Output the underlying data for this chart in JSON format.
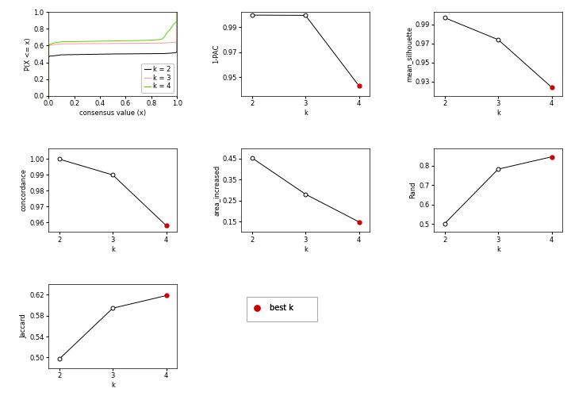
{
  "ecdf": {
    "k2": {
      "x": [
        0.0,
        0.001,
        0.005,
        0.01,
        0.05,
        0.1,
        0.5,
        0.9,
        0.95,
        0.99,
        0.995,
        0.999,
        1.0
      ],
      "y": [
        0.0,
        0.46,
        0.47,
        0.475,
        0.48,
        0.49,
        0.5,
        0.505,
        0.51,
        0.515,
        0.52,
        0.53,
        1.0
      ]
    },
    "k3": {
      "x": [
        0.0,
        0.001,
        0.005,
        0.01,
        0.05,
        0.1,
        0.5,
        0.9,
        0.95,
        0.99,
        0.995,
        0.999,
        1.0
      ],
      "y": [
        0.0,
        0.59,
        0.6,
        0.605,
        0.615,
        0.62,
        0.625,
        0.63,
        0.635,
        0.64,
        0.645,
        0.65,
        1.0
      ]
    },
    "k4": {
      "x": [
        0.0,
        0.001,
        0.005,
        0.01,
        0.05,
        0.1,
        0.5,
        0.7,
        0.8,
        0.85,
        0.88,
        0.9,
        0.92,
        0.95,
        0.97,
        0.99,
        0.995,
        0.999,
        1.0
      ],
      "y": [
        0.0,
        0.58,
        0.6,
        0.615,
        0.635,
        0.645,
        0.655,
        0.66,
        0.665,
        0.67,
        0.675,
        0.7,
        0.75,
        0.8,
        0.85,
        0.875,
        0.885,
        0.895,
        1.0
      ]
    }
  },
  "ecdf_colors": {
    "k2": "black",
    "k3": "#ff9999",
    "k4": "#66cc00"
  },
  "pac": {
    "k": [
      2,
      3,
      4
    ],
    "y": [
      0.9995,
      0.9993,
      0.943
    ],
    "best_k": 4,
    "ylim": [
      0.935,
      1.002
    ],
    "yticks": [
      0.95,
      0.97,
      0.99
    ],
    "ylabel": "1-PAC"
  },
  "silhouette": {
    "k": [
      2,
      3,
      4
    ],
    "y": [
      0.997,
      0.974,
      0.924
    ],
    "best_k": 4,
    "ylim": [
      0.915,
      1.003
    ],
    "yticks": [
      0.93,
      0.95,
      0.97,
      0.99
    ],
    "ylabel": "mean_silhouette"
  },
  "concordance": {
    "k": [
      2,
      3,
      4
    ],
    "y": [
      1.0,
      0.99,
      0.958
    ],
    "best_k": 4,
    "ylim": [
      0.954,
      1.007
    ],
    "yticks": [
      0.96,
      0.97,
      0.98,
      0.99,
      1.0
    ],
    "ylabel": "concordance"
  },
  "area_increased": {
    "k": [
      2,
      3,
      4
    ],
    "y": [
      0.453,
      0.28,
      0.148
    ],
    "best_k": 4,
    "ylim": [
      0.1,
      0.5
    ],
    "yticks": [
      0.15,
      0.25,
      0.35,
      0.45
    ],
    "ylabel": "area_increased"
  },
  "rand": {
    "k": [
      2,
      3,
      4
    ],
    "y": [
      0.503,
      0.782,
      0.845
    ],
    "best_k": 4,
    "ylim": [
      0.46,
      0.89
    ],
    "yticks": [
      0.5,
      0.6,
      0.7,
      0.8
    ],
    "ylabel": "Rand"
  },
  "jaccard": {
    "k": [
      2,
      3,
      4
    ],
    "y": [
      0.497,
      0.594,
      0.618
    ],
    "best_k": 4,
    "ylim": [
      0.48,
      0.64
    ],
    "yticks": [
      0.5,
      0.54,
      0.58,
      0.62
    ],
    "ylabel": "Jaccard"
  },
  "best_k_color": "#cc0000",
  "open_circle_color": "white",
  "line_color": "black",
  "background": "white",
  "font_size": 6,
  "tick_font_size": 6,
  "title_font_size": 6
}
